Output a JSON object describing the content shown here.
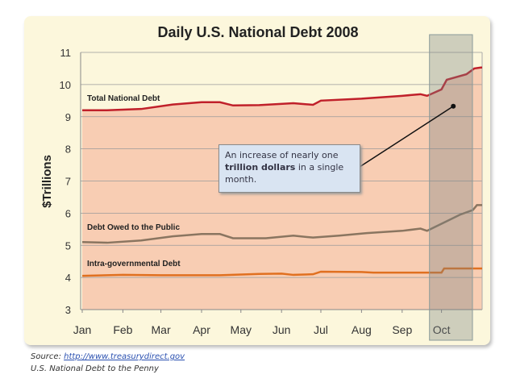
{
  "chart_data": {
    "type": "line",
    "title": "Daily U.S. National Debt 2008",
    "ylabel": "$Trillions",
    "xlabel": "",
    "ylim": [
      3,
      11
    ],
    "yticks": [
      "3",
      "4",
      "5",
      "6",
      "7",
      "8",
      "9",
      "10",
      "11"
    ],
    "xticks": [
      "Jan",
      "Feb",
      "Mar",
      "Apr",
      "May",
      "Jun",
      "Jul",
      "Aug",
      "Sep",
      "Oct"
    ],
    "grid": true,
    "highlight_period": [
      "2008-09-20",
      "2008-10-31"
    ],
    "series": [
      {
        "name": "Total National Debt",
        "color": "#c0202a",
        "filled": true,
        "fill": "#f8cdb3",
        "points": [
          [
            "2008-01-01",
            9.2
          ],
          [
            "2008-01-20",
            9.2
          ],
          [
            "2008-02-15",
            9.24
          ],
          [
            "2008-03-10",
            9.38
          ],
          [
            "2008-04-01",
            9.45
          ],
          [
            "2008-04-15",
            9.45
          ],
          [
            "2008-04-25",
            9.35
          ],
          [
            "2008-05-15",
            9.36
          ],
          [
            "2008-06-10",
            9.42
          ],
          [
            "2008-06-25",
            9.37
          ],
          [
            "2008-07-01",
            9.5
          ],
          [
            "2008-08-01",
            9.56
          ],
          [
            "2008-09-01",
            9.65
          ],
          [
            "2008-09-15",
            9.7
          ],
          [
            "2008-09-20",
            9.65
          ],
          [
            "2008-10-01",
            9.85
          ],
          [
            "2008-10-05",
            10.15
          ],
          [
            "2008-10-20",
            10.32
          ],
          [
            "2008-10-26",
            10.5
          ],
          [
            "2008-10-31",
            10.53
          ]
        ]
      },
      {
        "name": "Debt Owed to the Public",
        "color": "#8a7560",
        "points": [
          [
            "2008-01-01",
            5.1
          ],
          [
            "2008-01-20",
            5.08
          ],
          [
            "2008-02-15",
            5.15
          ],
          [
            "2008-03-10",
            5.28
          ],
          [
            "2008-04-01",
            5.35
          ],
          [
            "2008-04-15",
            5.35
          ],
          [
            "2008-04-25",
            5.22
          ],
          [
            "2008-05-20",
            5.22
          ],
          [
            "2008-06-10",
            5.3
          ],
          [
            "2008-06-25",
            5.24
          ],
          [
            "2008-07-15",
            5.3
          ],
          [
            "2008-08-05",
            5.38
          ],
          [
            "2008-09-01",
            5.45
          ],
          [
            "2008-09-15",
            5.52
          ],
          [
            "2008-09-20",
            5.45
          ],
          [
            "2008-10-05",
            5.75
          ],
          [
            "2008-10-15",
            5.95
          ],
          [
            "2008-10-25",
            6.1
          ],
          [
            "2008-10-28",
            6.25
          ],
          [
            "2008-10-31",
            6.25
          ]
        ]
      },
      {
        "name": "Intra-governmental Debt",
        "color": "#e07020",
        "points": [
          [
            "2008-01-01",
            4.05
          ],
          [
            "2008-02-01",
            4.08
          ],
          [
            "2008-03-01",
            4.07
          ],
          [
            "2008-04-15",
            4.07
          ],
          [
            "2008-05-15",
            4.11
          ],
          [
            "2008-06-01",
            4.12
          ],
          [
            "2008-06-10",
            4.08
          ],
          [
            "2008-06-25",
            4.1
          ],
          [
            "2008-07-01",
            4.18
          ],
          [
            "2008-08-01",
            4.17
          ],
          [
            "2008-08-10",
            4.15
          ],
          [
            "2008-09-01",
            4.15
          ],
          [
            "2008-10-01",
            4.15
          ],
          [
            "2008-10-03",
            4.28
          ],
          [
            "2008-10-31",
            4.28
          ]
        ]
      }
    ],
    "annotation": {
      "text_before": "An increase of nearly one ",
      "text_bold": "trillion dollars",
      "text_after": " in a single month.",
      "target": [
        "2008-10-10",
        9.4
      ]
    }
  },
  "footer": {
    "source_label": "Source:",
    "source_link": "http://www.treasurydirect.gov",
    "subtitle": "U.S. National Debt to the Penny"
  }
}
